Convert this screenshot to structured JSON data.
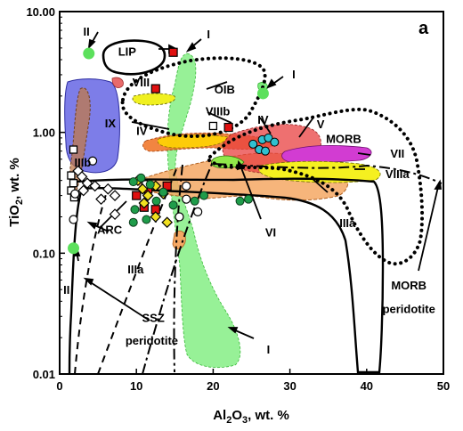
{
  "chart_data": {
    "type": "scatter",
    "panel_label": "a",
    "x_axis": {
      "label": "Al2O3, wt. %",
      "label_main": "Al",
      "label_sub1": "2",
      "label_mid": "O",
      "label_sub2": "3",
      "label_tail": ", wt. %",
      "min": 0,
      "max": 50,
      "scale": "linear",
      "ticks": [
        0,
        10,
        20,
        30,
        40,
        50
      ],
      "tick_labels": [
        "0",
        "10",
        "20",
        "30",
        "40",
        "50"
      ]
    },
    "y_axis": {
      "label": "TiO2, wt. %",
      "label_main": "TiO",
      "label_sub": "2",
      "label_tail": ", wt. %",
      "min": 0.01,
      "max": 10,
      "scale": "log",
      "ticks": [
        0.01,
        0.1,
        1,
        10
      ],
      "tick_labels": [
        "0.01",
        "0.10",
        "1.00",
        "10.00"
      ]
    },
    "field_labels": [
      {
        "text": "II",
        "x": 3.5,
        "y": 6.3
      },
      {
        "text": "I",
        "x": 19.4,
        "y": 6.0
      },
      {
        "text": "LIP",
        "x": 8.8,
        "y": 4.3
      },
      {
        "text": "I",
        "x": 30.5,
        "y": 2.8
      },
      {
        "text": "VIII",
        "x": 10.6,
        "y": 2.4
      },
      {
        "text": "OIB",
        "x": 21.5,
        "y": 2.1
      },
      {
        "text": "IX",
        "x": 6.6,
        "y": 1.1
      },
      {
        "text": "VIIIb",
        "x": 20.6,
        "y": 1.38
      },
      {
        "text": "IV",
        "x": 10.7,
        "y": 0.95
      },
      {
        "text": "IV",
        "x": 26.5,
        "y": 1.18
      },
      {
        "text": "V",
        "x": 34.0,
        "y": 1.08
      },
      {
        "text": "MORB",
        "x": 37.0,
        "y": 0.82
      },
      {
        "text": "VII",
        "x": 44.0,
        "y": 0.62
      },
      {
        "text": "IIIb",
        "x": 3.0,
        "y": 0.52
      },
      {
        "text": "VIIIa",
        "x": 44.0,
        "y": 0.42
      },
      {
        "text": "IIIa",
        "x": 37.5,
        "y": 0.165
      },
      {
        "text": "VI",
        "x": 27.5,
        "y": 0.138
      },
      {
        "text": "ARC",
        "x": 6.5,
        "y": 0.145
      },
      {
        "text": "IIIa",
        "x": 9.9,
        "y": 0.068
      },
      {
        "text": "II",
        "x": 0.9,
        "y": 0.046
      },
      {
        "text": "MORB",
        "x": 45.5,
        "y": 0.05
      },
      {
        "text": "peridotite",
        "x": 45.5,
        "y": 0.032
      },
      {
        "text": "SSZ",
        "x": 12.2,
        "y": 0.027
      },
      {
        "text": "peridotite",
        "x": 12.0,
        "y": 0.0175
      },
      {
        "text": "I",
        "x": 27.2,
        "y": 0.0148
      }
    ],
    "points": [
      {
        "marker": "green-circle",
        "x": 3.8,
        "y": 4.5
      },
      {
        "marker": "green-circle",
        "x": 1.8,
        "y": 0.11
      },
      {
        "marker": "green-circle",
        "x": 26.5,
        "y": 2.1
      },
      {
        "marker": "red-square",
        "x": 14.8,
        "y": 4.6
      },
      {
        "marker": "red-square",
        "x": 12.5,
        "y": 2.3
      },
      {
        "marker": "red-square",
        "x": 22.0,
        "y": 1.1
      },
      {
        "marker": "red-square",
        "x": 10.0,
        "y": 0.3
      },
      {
        "marker": "red-square",
        "x": 11.0,
        "y": 0.24
      },
      {
        "marker": "red-square",
        "x": 11.5,
        "y": 0.34
      },
      {
        "marker": "red-square",
        "x": 14.0,
        "y": 0.36
      },
      {
        "marker": "red-square",
        "x": 12.5,
        "y": 0.23
      },
      {
        "marker": "open-square",
        "x": 20.0,
        "y": 1.13
      },
      {
        "marker": "open-square",
        "x": 1.8,
        "y": 0.72
      },
      {
        "marker": "open-square",
        "x": 1.5,
        "y": 0.44
      },
      {
        "marker": "open-square",
        "x": 1.8,
        "y": 0.38
      },
      {
        "marker": "open-square",
        "x": 1.5,
        "y": 0.33
      },
      {
        "marker": "open-square",
        "x": 1.9,
        "y": 0.29
      },
      {
        "marker": "open-circle",
        "x": 1.8,
        "y": 0.19
      },
      {
        "marker": "open-circle",
        "x": 4.3,
        "y": 0.58
      },
      {
        "marker": "open-circle",
        "x": 2.0,
        "y": 0.31
      },
      {
        "marker": "open-circle",
        "x": 16.5,
        "y": 0.36
      },
      {
        "marker": "open-circle",
        "x": 11.2,
        "y": 0.37
      },
      {
        "marker": "open-circle",
        "x": 16.5,
        "y": 0.28
      },
      {
        "marker": "open-circle",
        "x": 18.0,
        "y": 0.22
      },
      {
        "marker": "open-circle",
        "x": 15.6,
        "y": 0.2
      },
      {
        "marker": "open-diamond",
        "x": 2.4,
        "y": 0.48
      },
      {
        "marker": "open-diamond",
        "x": 2.9,
        "y": 0.43
      },
      {
        "marker": "open-diamond",
        "x": 3.6,
        "y": 0.38
      },
      {
        "marker": "open-diamond",
        "x": 3.1,
        "y": 0.33
      },
      {
        "marker": "open-diamond",
        "x": 4.6,
        "y": 0.36
      },
      {
        "marker": "open-diamond",
        "x": 6.3,
        "y": 0.34
      },
      {
        "marker": "open-diamond",
        "x": 5.4,
        "y": 0.28
      },
      {
        "marker": "open-diamond",
        "x": 7.2,
        "y": 0.3
      },
      {
        "marker": "open-diamond",
        "x": 7.2,
        "y": 0.21
      },
      {
        "marker": "yellow-diamond",
        "x": 10.2,
        "y": 0.4
      },
      {
        "marker": "yellow-diamond",
        "x": 10.8,
        "y": 0.34
      },
      {
        "marker": "yellow-diamond",
        "x": 12.5,
        "y": 0.36
      },
      {
        "marker": "yellow-diamond",
        "x": 11.5,
        "y": 0.3
      },
      {
        "marker": "yellow-diamond",
        "x": 13.5,
        "y": 0.31
      },
      {
        "marker": "yellow-diamond",
        "x": 11.0,
        "y": 0.26
      },
      {
        "marker": "yellow-diamond",
        "x": 14.0,
        "y": 0.18
      },
      {
        "marker": "yellow-diamond",
        "x": 12.5,
        "y": 0.2
      },
      {
        "marker": "dark-green-circle",
        "x": 9.6,
        "y": 0.39
      },
      {
        "marker": "dark-green-circle",
        "x": 10.6,
        "y": 0.42
      },
      {
        "marker": "dark-green-circle",
        "x": 11.8,
        "y": 0.37
      },
      {
        "marker": "dark-green-circle",
        "x": 13.5,
        "y": 0.32
      },
      {
        "marker": "dark-green-circle",
        "x": 9.8,
        "y": 0.23
      },
      {
        "marker": "dark-green-circle",
        "x": 9.6,
        "y": 0.18
      },
      {
        "marker": "dark-green-circle",
        "x": 12.6,
        "y": 0.27
      },
      {
        "marker": "dark-green-circle",
        "x": 14.8,
        "y": 0.25
      },
      {
        "marker": "dark-green-circle",
        "x": 17.6,
        "y": 0.27
      },
      {
        "marker": "dark-green-circle",
        "x": 18.8,
        "y": 0.3
      },
      {
        "marker": "dark-green-circle",
        "x": 23.5,
        "y": 0.27
      },
      {
        "marker": "dark-green-circle",
        "x": 24.6,
        "y": 0.28
      },
      {
        "marker": "dark-green-circle",
        "x": 11.3,
        "y": 0.19
      },
      {
        "marker": "cyan-circle",
        "x": 25.2,
        "y": 0.8
      },
      {
        "marker": "cyan-circle",
        "x": 26.4,
        "y": 0.87
      },
      {
        "marker": "cyan-circle",
        "x": 27.2,
        "y": 0.9
      },
      {
        "marker": "cyan-circle",
        "x": 28.0,
        "y": 0.83
      },
      {
        "marker": "cyan-circle",
        "x": 26.0,
        "y": 0.72
      },
      {
        "marker": "cyan-circle",
        "x": 26.8,
        "y": 0.7
      }
    ]
  }
}
